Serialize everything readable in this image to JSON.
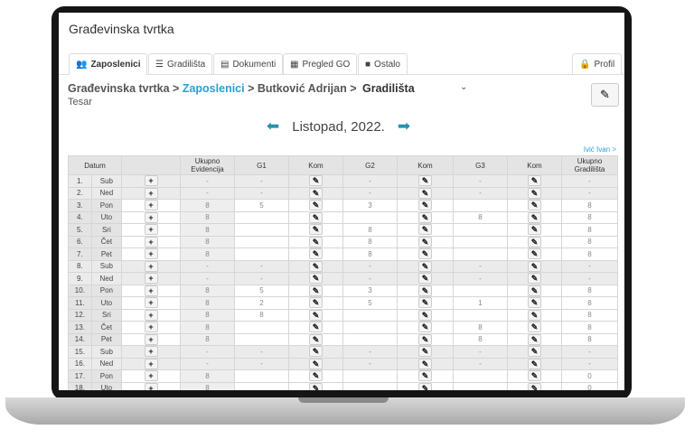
{
  "app_title": "Građevinska tvrtka",
  "tabs": [
    {
      "label": "Zaposlenici",
      "icon": "users-icon",
      "active": true
    },
    {
      "label": "Gradilišta",
      "icon": "list-icon"
    },
    {
      "label": "Dokumenti",
      "icon": "document-icon"
    },
    {
      "label": "Pregled GO",
      "icon": "calendar-icon"
    },
    {
      "label": "Ostalo",
      "icon": "folder-icon"
    }
  ],
  "profile_label": "Profil",
  "breadcrumb": {
    "root": "Građevinska tvrtka >",
    "link": "Zaposlenici",
    "person": "> Butković Adrijan >",
    "current": "Gradilišta"
  },
  "role": "Tesar",
  "month": "Listopad, 2022.",
  "next_employee": "Ivić Ivan >",
  "columns": [
    "Datum",
    "",
    "Ukupno Evidencija",
    "G1",
    "Kom",
    "G2",
    "Kom",
    "G3",
    "Kom",
    "Ukupno Gradilišta"
  ],
  "rows": [
    {
      "n": "1.",
      "day": "Sub",
      "ev": "-",
      "g1": "-",
      "g2": "-",
      "g3": "-",
      "tot": "-",
      "weekend": true
    },
    {
      "n": "2.",
      "day": "Ned",
      "ev": "-",
      "g1": "-",
      "g2": "-",
      "g3": "-",
      "tot": "-",
      "weekend": true
    },
    {
      "n": "3.",
      "day": "Pon",
      "ev": "8",
      "g1": "5",
      "g2": "3",
      "g3": "",
      "tot": "8"
    },
    {
      "n": "4.",
      "day": "Uto",
      "ev": "8",
      "g1": "",
      "g2": "",
      "g3": "8",
      "tot": "8"
    },
    {
      "n": "5.",
      "day": "Sri",
      "ev": "8",
      "g1": "",
      "g2": "8",
      "g3": "",
      "tot": "8"
    },
    {
      "n": "6.",
      "day": "Čet",
      "ev": "8",
      "g1": "",
      "g2": "8",
      "g3": "",
      "tot": "8"
    },
    {
      "n": "7.",
      "day": "Pet",
      "ev": "8",
      "g1": "",
      "g2": "8",
      "g3": "",
      "tot": "8"
    },
    {
      "n": "8.",
      "day": "Sub",
      "ev": "-",
      "g1": "-",
      "g2": "-",
      "g3": "-",
      "tot": "-",
      "weekend": true
    },
    {
      "n": "9.",
      "day": "Ned",
      "ev": "-",
      "g1": "-",
      "g2": "-",
      "g3": "-",
      "tot": "-",
      "weekend": true
    },
    {
      "n": "10.",
      "day": "Pon",
      "ev": "8",
      "g1": "5",
      "g2": "3",
      "g3": "",
      "tot": "8"
    },
    {
      "n": "11.",
      "day": "Uto",
      "ev": "8",
      "g1": "2",
      "g2": "5",
      "g3": "1",
      "tot": "8"
    },
    {
      "n": "12.",
      "day": "Sri",
      "ev": "8",
      "g1": "8",
      "g2": "",
      "g3": "",
      "tot": "8"
    },
    {
      "n": "13.",
      "day": "Čet",
      "ev": "8",
      "g1": "",
      "g2": "",
      "g3": "8",
      "tot": "8"
    },
    {
      "n": "14.",
      "day": "Pet",
      "ev": "8",
      "g1": "",
      "g2": "",
      "g3": "8",
      "tot": "8"
    },
    {
      "n": "15.",
      "day": "Sub",
      "ev": "-",
      "g1": "-",
      "g2": "-",
      "g3": "-",
      "tot": "-",
      "weekend": true
    },
    {
      "n": "16.",
      "day": "Ned",
      "ev": "-",
      "g1": "-",
      "g2": "-",
      "g3": "-",
      "tot": "-",
      "weekend": true
    },
    {
      "n": "17.",
      "day": "Pon",
      "ev": "8",
      "g1": "",
      "g2": "",
      "g3": "",
      "tot": "0"
    },
    {
      "n": "18.",
      "day": "Uto",
      "ev": "8",
      "g1": "",
      "g2": "",
      "g3": "",
      "tot": "0"
    }
  ],
  "colors": {
    "link": "#2a9fd8",
    "arrow": "#2a8fb0"
  }
}
